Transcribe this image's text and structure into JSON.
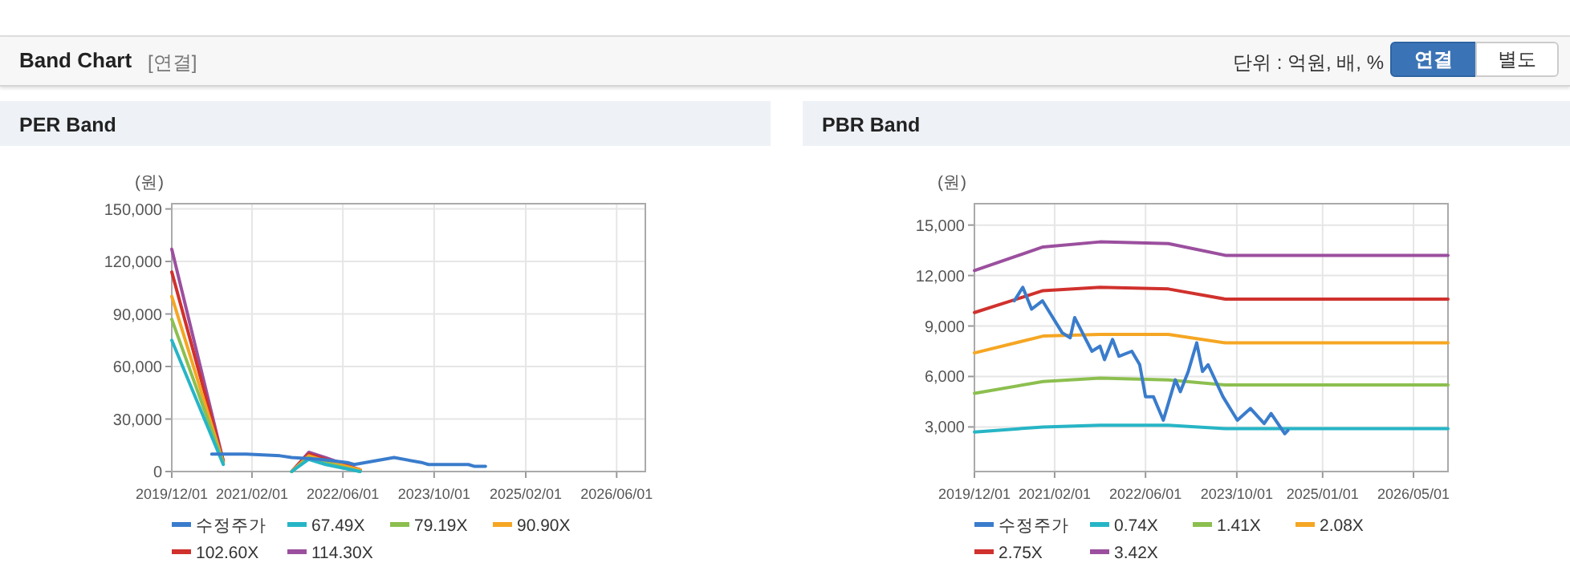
{
  "chart_data": [
    {
      "type": "other",
      "title": "Band Chart",
      "annotations": [
        "[연결]",
        "단위 : 억원, 배, %",
        "연결",
        "별도"
      ]
    },
    {
      "type": "line",
      "title": "PER Band",
      "ylabel": "(원)",
      "xlim": [
        "2019-12-01",
        "2026-11-01"
      ],
      "ylim": [
        0,
        153000
      ],
      "xticks": [
        {
          "value": "2019-12-01",
          "label": "2019/12/01"
        },
        {
          "value": "2021-02-01",
          "label": "2021/02/01"
        },
        {
          "value": "2022-06-01",
          "label": "2022/06/01"
        },
        {
          "value": "2023-10-01",
          "label": "2023/10/01"
        },
        {
          "value": "2025-02-01",
          "label": "2025/02/01"
        },
        {
          "value": "2026-06-01",
          "label": "2026/06/01"
        }
      ],
      "yticks": [
        {
          "value": 0,
          "label": "0"
        },
        {
          "value": 30000,
          "label": "30,000"
        },
        {
          "value": 60000,
          "label": "60,000"
        },
        {
          "value": 90000,
          "label": "90,000"
        },
        {
          "value": 120000,
          "label": "120,000"
        },
        {
          "value": 150000,
          "label": "150,000"
        }
      ],
      "grid": true,
      "legend": "bottom",
      "series": [
        {
          "name": "수정주가",
          "color": "#3a7ccc",
          "x": [
            "2020-07-01",
            "2021-01-01",
            "2021-07-01",
            "2021-09-01",
            "2022-02-01",
            "2022-07-01",
            "2022-08-01",
            "2023-03-01",
            "2023-08-01",
            "2023-09-01",
            "2024-04-01",
            "2024-05-01",
            "2024-07-01"
          ],
          "values": [
            10000,
            10000,
            9000,
            8000,
            7000,
            5000,
            4000,
            8000,
            5000,
            4000,
            4000,
            3000,
            3000
          ]
        },
        {
          "name": "67.49X",
          "color": "#26b5c6",
          "x": [
            "2019-12-01",
            "2020-09-01",
            "2021-03-01",
            "2021-09-01",
            "2021-12-01",
            "2022-03-01",
            "2022-09-01"
          ],
          "values": [
            75000,
            4000,
            null,
            0,
            7000,
            4000,
            0
          ]
        },
        {
          "name": "79.19X",
          "color": "#8cbf4f",
          "x": [
            "2019-12-01",
            "2020-09-01",
            "2021-03-01",
            "2021-09-01",
            "2021-12-01",
            "2022-03-01",
            "2022-09-01"
          ],
          "values": [
            87000,
            5000,
            null,
            0,
            8000,
            5000,
            0
          ]
        },
        {
          "name": "90.90X",
          "color": "#f5a623",
          "x": [
            "2019-12-01",
            "2020-09-01",
            "2021-03-01",
            "2021-09-01",
            "2021-12-01",
            "2022-03-01",
            "2022-09-01"
          ],
          "values": [
            100000,
            5000,
            null,
            0,
            9000,
            6000,
            1000
          ]
        },
        {
          "name": "102.60X",
          "color": "#d0312d",
          "x": [
            "2019-12-01",
            "2020-09-01",
            "2021-03-01",
            "2021-09-01",
            "2021-12-01",
            "2022-03-01",
            "2022-09-01"
          ],
          "values": [
            114000,
            6000,
            null,
            0,
            10000,
            7000,
            1000
          ]
        },
        {
          "name": "114.30X",
          "color": "#9b4f9e",
          "x": [
            "2019-12-01",
            "2020-09-01",
            "2021-03-01",
            "2021-09-01",
            "2021-12-01",
            "2022-03-01",
            "2022-09-01"
          ],
          "values": [
            127000,
            6000,
            null,
            0,
            11000,
            8000,
            1000
          ]
        }
      ]
    },
    {
      "type": "line",
      "title": "PBR Band",
      "ylabel": "(원)",
      "xlim": [
        "2019-12-01",
        "2026-11-01"
      ],
      "ylim": [
        350,
        16270
      ],
      "xticks": [
        {
          "value": "2019-12-01",
          "label": "2019/12/01"
        },
        {
          "value": "2021-02-01",
          "label": "2021/02/01"
        },
        {
          "value": "2022-06-01",
          "label": "2022/06/01"
        },
        {
          "value": "2023-10-01",
          "label": "2023/10/01"
        },
        {
          "value": "2025-01-01",
          "label": "2025/01/01"
        },
        {
          "value": "2026-05-01",
          "label": "2026/05/01"
        }
      ],
      "yticks": [
        {
          "value": 3000,
          "label": "3,000"
        },
        {
          "value": 6000,
          "label": "6,000"
        },
        {
          "value": 9000,
          "label": "9,000"
        },
        {
          "value": 12000,
          "label": "12,000"
        },
        {
          "value": 15000,
          "label": "15,000"
        }
      ],
      "grid": true,
      "legend": "bottom",
      "series": [
        {
          "name": "수정주가",
          "color": "#3a7ccc",
          "x": [
            "2020-07-01",
            "2020-08-15",
            "2020-10-01",
            "2020-11-28",
            "2021-03-13",
            "2021-04-25",
            "2021-05-19",
            "2021-08-19",
            "2021-10-01",
            "2021-10-25",
            "2021-12-07",
            "2022-01-10",
            "2022-03-20",
            "2022-05-01",
            "2022-06-01",
            "2022-07-13",
            "2022-09-04",
            "2022-11-07",
            "2022-12-04",
            "2023-01-15",
            "2023-03-01",
            "2023-04-01",
            "2023-05-01",
            "2023-07-19",
            "2023-10-04",
            "2023-12-13",
            "2024-02-24",
            "2024-04-01",
            "2024-06-13",
            "2024-06-30"
          ],
          "values": [
            10500,
            11300,
            10000,
            10500,
            8600,
            8300,
            9500,
            7500,
            7800,
            7000,
            8200,
            7200,
            7500,
            6700,
            4800,
            4800,
            3400,
            5800,
            5100,
            6300,
            8000,
            6300,
            6700,
            4800,
            3400,
            4100,
            3200,
            3800,
            2600,
            2800
          ]
        },
        {
          "name": "0.74X",
          "color": "#26b5c6",
          "x": [
            "2019-12-01",
            "2020-12-01",
            "2021-10-01",
            "2022-10-01",
            "2023-08-01",
            "2026-11-01"
          ],
          "values": [
            2700,
            3000,
            3100,
            3100,
            2900,
            2900
          ]
        },
        {
          "name": "1.41X",
          "color": "#8cbf4f",
          "x": [
            "2019-12-01",
            "2020-12-01",
            "2021-10-01",
            "2022-10-01",
            "2023-08-01",
            "2026-11-01"
          ],
          "values": [
            5000,
            5700,
            5900,
            5800,
            5500,
            5500
          ]
        },
        {
          "name": "2.08X",
          "color": "#f5a623",
          "x": [
            "2019-12-01",
            "2020-12-01",
            "2021-10-01",
            "2022-10-01",
            "2023-08-01",
            "2026-11-01"
          ],
          "values": [
            7400,
            8400,
            8500,
            8500,
            8000,
            8000
          ]
        },
        {
          "name": "2.75X",
          "color": "#d0312d",
          "x": [
            "2019-12-01",
            "2020-12-01",
            "2021-10-01",
            "2022-10-01",
            "2023-08-01",
            "2026-11-01"
          ],
          "values": [
            9800,
            11100,
            11300,
            11200,
            10600,
            10600
          ]
        },
        {
          "name": "3.42X",
          "color": "#9b4f9e",
          "x": [
            "2019-12-01",
            "2020-12-01",
            "2021-10-01",
            "2022-10-01",
            "2023-08-01",
            "2026-11-01"
          ],
          "values": [
            12300,
            13700,
            14000,
            13900,
            13200,
            13200
          ]
        }
      ]
    }
  ]
}
